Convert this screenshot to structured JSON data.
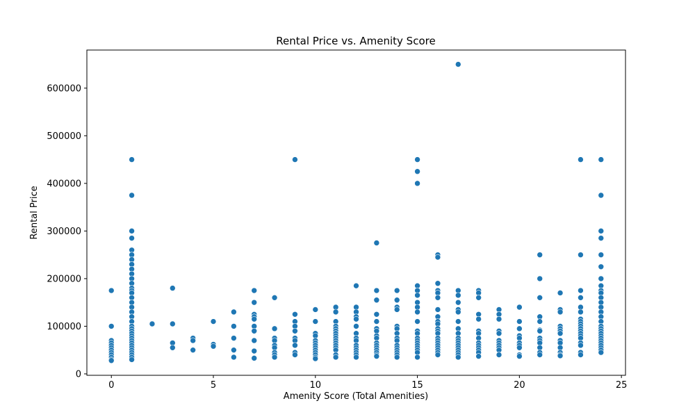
{
  "chart_data": {
    "type": "scatter",
    "title": "Rental Price vs. Amenity Score",
    "xlabel": "Amenity Score (Total Amenities)",
    "ylabel": "Rental Price",
    "xlim": [
      -1.2,
      25.2
    ],
    "ylim": [
      -3000,
      680000
    ],
    "xticks": [
      0,
      5,
      10,
      15,
      20,
      25
    ],
    "yticks": [
      0,
      100000,
      200000,
      300000,
      400000,
      500000,
      600000
    ],
    "grid": false,
    "color": "#1f77b4",
    "points": [
      [
        0,
        175000
      ],
      [
        0,
        100000
      ],
      [
        0,
        70000
      ],
      [
        0,
        65000
      ],
      [
        0,
        60000
      ],
      [
        0,
        55000
      ],
      [
        0,
        50000
      ],
      [
        0,
        45000
      ],
      [
        0,
        40000
      ],
      [
        0,
        35000
      ],
      [
        0,
        30000
      ],
      [
        0,
        28000
      ],
      [
        1,
        450000
      ],
      [
        1,
        375000
      ],
      [
        1,
        300000
      ],
      [
        1,
        285000
      ],
      [
        1,
        260000
      ],
      [
        1,
        250000
      ],
      [
        1,
        240000
      ],
      [
        1,
        230000
      ],
      [
        1,
        220000
      ],
      [
        1,
        210000
      ],
      [
        1,
        200000
      ],
      [
        1,
        190000
      ],
      [
        1,
        180000
      ],
      [
        1,
        175000
      ],
      [
        1,
        170000
      ],
      [
        1,
        160000
      ],
      [
        1,
        150000
      ],
      [
        1,
        140000
      ],
      [
        1,
        130000
      ],
      [
        1,
        120000
      ],
      [
        1,
        110000
      ],
      [
        1,
        100000
      ],
      [
        1,
        95000
      ],
      [
        1,
        90000
      ],
      [
        1,
        85000
      ],
      [
        1,
        80000
      ],
      [
        1,
        75000
      ],
      [
        1,
        70000
      ],
      [
        1,
        65000
      ],
      [
        1,
        60000
      ],
      [
        1,
        55000
      ],
      [
        1,
        50000
      ],
      [
        1,
        45000
      ],
      [
        1,
        40000
      ],
      [
        1,
        35000
      ],
      [
        1,
        30000
      ],
      [
        2,
        105000
      ],
      [
        3,
        180000
      ],
      [
        3,
        105000
      ],
      [
        3,
        65000
      ],
      [
        3,
        55000
      ],
      [
        4,
        75000
      ],
      [
        4,
        70000
      ],
      [
        4,
        50000
      ],
      [
        5,
        110000
      ],
      [
        5,
        62000
      ],
      [
        5,
        58000
      ],
      [
        6,
        130000
      ],
      [
        6,
        100000
      ],
      [
        6,
        75000
      ],
      [
        6,
        50000
      ],
      [
        6,
        35000
      ],
      [
        7,
        175000
      ],
      [
        7,
        150000
      ],
      [
        7,
        125000
      ],
      [
        7,
        120000
      ],
      [
        7,
        115000
      ],
      [
        7,
        100000
      ],
      [
        7,
        90000
      ],
      [
        7,
        70000
      ],
      [
        7,
        48000
      ],
      [
        7,
        33000
      ],
      [
        8,
        160000
      ],
      [
        8,
        95000
      ],
      [
        8,
        75000
      ],
      [
        8,
        70000
      ],
      [
        8,
        60000
      ],
      [
        8,
        55000
      ],
      [
        8,
        45000
      ],
      [
        8,
        40000
      ],
      [
        8,
        35000
      ],
      [
        9,
        450000
      ],
      [
        9,
        125000
      ],
      [
        9,
        110000
      ],
      [
        9,
        100000
      ],
      [
        9,
        90000
      ],
      [
        9,
        75000
      ],
      [
        9,
        70000
      ],
      [
        9,
        60000
      ],
      [
        9,
        45000
      ],
      [
        9,
        40000
      ],
      [
        10,
        135000
      ],
      [
        10,
        110000
      ],
      [
        10,
        85000
      ],
      [
        10,
        80000
      ],
      [
        10,
        70000
      ],
      [
        10,
        65000
      ],
      [
        10,
        60000
      ],
      [
        10,
        55000
      ],
      [
        10,
        50000
      ],
      [
        10,
        45000
      ],
      [
        10,
        40000
      ],
      [
        10,
        35000
      ],
      [
        10,
        32000
      ],
      [
        11,
        140000
      ],
      [
        11,
        130000
      ],
      [
        11,
        110000
      ],
      [
        11,
        100000
      ],
      [
        11,
        95000
      ],
      [
        11,
        90000
      ],
      [
        11,
        85000
      ],
      [
        11,
        80000
      ],
      [
        11,
        75000
      ],
      [
        11,
        70000
      ],
      [
        11,
        65000
      ],
      [
        11,
        60000
      ],
      [
        11,
        55000
      ],
      [
        11,
        50000
      ],
      [
        11,
        40000
      ],
      [
        11,
        35000
      ],
      [
        12,
        185000
      ],
      [
        12,
        140000
      ],
      [
        12,
        130000
      ],
      [
        12,
        120000
      ],
      [
        12,
        115000
      ],
      [
        12,
        100000
      ],
      [
        12,
        85000
      ],
      [
        12,
        75000
      ],
      [
        12,
        70000
      ],
      [
        12,
        60000
      ],
      [
        12,
        55000
      ],
      [
        12,
        50000
      ],
      [
        12,
        45000
      ],
      [
        12,
        40000
      ],
      [
        12,
        35000
      ],
      [
        13,
        275000
      ],
      [
        13,
        175000
      ],
      [
        13,
        155000
      ],
      [
        13,
        125000
      ],
      [
        13,
        110000
      ],
      [
        13,
        95000
      ],
      [
        13,
        90000
      ],
      [
        13,
        80000
      ],
      [
        13,
        75000
      ],
      [
        13,
        65000
      ],
      [
        13,
        60000
      ],
      [
        13,
        55000
      ],
      [
        13,
        50000
      ],
      [
        13,
        45000
      ],
      [
        13,
        40000
      ],
      [
        13,
        37000
      ],
      [
        14,
        175000
      ],
      [
        14,
        155000
      ],
      [
        14,
        140000
      ],
      [
        14,
        135000
      ],
      [
        14,
        100000
      ],
      [
        14,
        95000
      ],
      [
        14,
        85000
      ],
      [
        14,
        75000
      ],
      [
        14,
        70000
      ],
      [
        14,
        60000
      ],
      [
        14,
        55000
      ],
      [
        14,
        50000
      ],
      [
        14,
        45000
      ],
      [
        14,
        40000
      ],
      [
        14,
        35000
      ],
      [
        15,
        450000
      ],
      [
        15,
        425000
      ],
      [
        15,
        400000
      ],
      [
        15,
        185000
      ],
      [
        15,
        175000
      ],
      [
        15,
        165000
      ],
      [
        15,
        150000
      ],
      [
        15,
        140000
      ],
      [
        15,
        130000
      ],
      [
        15,
        110000
      ],
      [
        15,
        90000
      ],
      [
        15,
        85000
      ],
      [
        15,
        75000
      ],
      [
        15,
        70000
      ],
      [
        15,
        65000
      ],
      [
        15,
        60000
      ],
      [
        15,
        55000
      ],
      [
        15,
        50000
      ],
      [
        15,
        45000
      ],
      [
        15,
        35000
      ],
      [
        16,
        250000
      ],
      [
        16,
        245000
      ],
      [
        16,
        190000
      ],
      [
        16,
        175000
      ],
      [
        16,
        170000
      ],
      [
        16,
        160000
      ],
      [
        16,
        135000
      ],
      [
        16,
        120000
      ],
      [
        16,
        110000
      ],
      [
        16,
        105000
      ],
      [
        16,
        95000
      ],
      [
        16,
        90000
      ],
      [
        16,
        85000
      ],
      [
        16,
        75000
      ],
      [
        16,
        70000
      ],
      [
        16,
        65000
      ],
      [
        16,
        60000
      ],
      [
        16,
        55000
      ],
      [
        16,
        50000
      ],
      [
        16,
        45000
      ],
      [
        16,
        40000
      ],
      [
        17,
        650000
      ],
      [
        17,
        175000
      ],
      [
        17,
        165000
      ],
      [
        17,
        150000
      ],
      [
        17,
        135000
      ],
      [
        17,
        130000
      ],
      [
        17,
        110000
      ],
      [
        17,
        95000
      ],
      [
        17,
        85000
      ],
      [
        17,
        75000
      ],
      [
        17,
        70000
      ],
      [
        17,
        65000
      ],
      [
        17,
        60000
      ],
      [
        17,
        55000
      ],
      [
        17,
        50000
      ],
      [
        17,
        45000
      ],
      [
        17,
        40000
      ],
      [
        17,
        35000
      ],
      [
        18,
        175000
      ],
      [
        18,
        170000
      ],
      [
        18,
        160000
      ],
      [
        18,
        125000
      ],
      [
        18,
        115000
      ],
      [
        18,
        90000
      ],
      [
        18,
        85000
      ],
      [
        18,
        75000
      ],
      [
        18,
        65000
      ],
      [
        18,
        60000
      ],
      [
        18,
        55000
      ],
      [
        18,
        50000
      ],
      [
        18,
        45000
      ],
      [
        18,
        37000
      ],
      [
        19,
        135000
      ],
      [
        19,
        125000
      ],
      [
        19,
        115000
      ],
      [
        19,
        90000
      ],
      [
        19,
        85000
      ],
      [
        19,
        70000
      ],
      [
        19,
        65000
      ],
      [
        19,
        60000
      ],
      [
        19,
        55000
      ],
      [
        19,
        50000
      ],
      [
        19,
        40000
      ],
      [
        20,
        140000
      ],
      [
        20,
        110000
      ],
      [
        20,
        95000
      ],
      [
        20,
        80000
      ],
      [
        20,
        75000
      ],
      [
        20,
        65000
      ],
      [
        20,
        60000
      ],
      [
        20,
        55000
      ],
      [
        20,
        40000
      ],
      [
        20,
        37000
      ],
      [
        21,
        250000
      ],
      [
        21,
        200000
      ],
      [
        21,
        160000
      ],
      [
        21,
        120000
      ],
      [
        21,
        110000
      ],
      [
        21,
        92000
      ],
      [
        21,
        90000
      ],
      [
        21,
        75000
      ],
      [
        21,
        70000
      ],
      [
        21,
        65000
      ],
      [
        21,
        55000
      ],
      [
        21,
        45000
      ],
      [
        21,
        40000
      ],
      [
        22,
        170000
      ],
      [
        22,
        135000
      ],
      [
        22,
        130000
      ],
      [
        22,
        100000
      ],
      [
        22,
        95000
      ],
      [
        22,
        90000
      ],
      [
        22,
        85000
      ],
      [
        22,
        70000
      ],
      [
        22,
        65000
      ],
      [
        22,
        55000
      ],
      [
        22,
        45000
      ],
      [
        22,
        40000
      ],
      [
        22,
        38000
      ],
      [
        23,
        450000
      ],
      [
        23,
        250000
      ],
      [
        23,
        175000
      ],
      [
        23,
        160000
      ],
      [
        23,
        140000
      ],
      [
        23,
        130000
      ],
      [
        23,
        115000
      ],
      [
        23,
        110000
      ],
      [
        23,
        105000
      ],
      [
        23,
        100000
      ],
      [
        23,
        95000
      ],
      [
        23,
        90000
      ],
      [
        23,
        85000
      ],
      [
        23,
        80000
      ],
      [
        23,
        75000
      ],
      [
        23,
        65000
      ],
      [
        23,
        60000
      ],
      [
        23,
        45000
      ],
      [
        23,
        40000
      ],
      [
        24,
        450000
      ],
      [
        24,
        375000
      ],
      [
        24,
        300000
      ],
      [
        24,
        285000
      ],
      [
        24,
        250000
      ],
      [
        24,
        225000
      ],
      [
        24,
        200000
      ],
      [
        24,
        185000
      ],
      [
        24,
        175000
      ],
      [
        24,
        170000
      ],
      [
        24,
        160000
      ],
      [
        24,
        150000
      ],
      [
        24,
        140000
      ],
      [
        24,
        130000
      ],
      [
        24,
        120000
      ],
      [
        24,
        110000
      ],
      [
        24,
        100000
      ],
      [
        24,
        95000
      ],
      [
        24,
        90000
      ],
      [
        24,
        85000
      ],
      [
        24,
        80000
      ],
      [
        24,
        75000
      ],
      [
        24,
        70000
      ],
      [
        24,
        65000
      ],
      [
        24,
        60000
      ],
      [
        24,
        55000
      ],
      [
        24,
        50000
      ],
      [
        24,
        45000
      ]
    ]
  }
}
